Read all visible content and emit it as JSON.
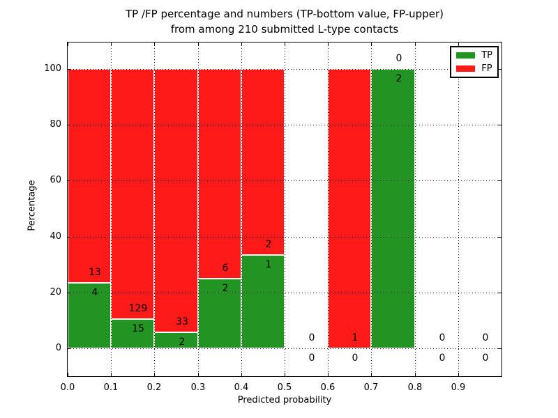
{
  "figure": {
    "title_line1": "TP /FP percentage and numbers (TP-bottom value, FP-upper)",
    "title_line2": "from among 210 submitted L-type contacts",
    "xlabel": "Predicted probability",
    "ylabel": "Percentage"
  },
  "legend": {
    "position": "upper-right",
    "items": [
      {
        "label": "TP",
        "color": "#219421"
      },
      {
        "label": "FP",
        "color": "#ff1a1a"
      }
    ]
  },
  "chart_data": {
    "type": "bar",
    "stacked": true,
    "title": "TP /FP percentage and numbers (TP-bottom value, FP-upper)\nfrom among 210 submitted L-type contacts",
    "xlabel": "Predicted probability",
    "ylabel": "Percentage",
    "xlim": [
      0.0,
      1.0
    ],
    "ylim": [
      -10,
      110
    ],
    "grid": true,
    "bin_width": 0.1,
    "x_tick_labels": [
      "0.0",
      "0.1",
      "0.2",
      "0.3",
      "0.4",
      "0.5",
      "0.6",
      "0.7",
      "0.8",
      "0.9"
    ],
    "y_ticks": [
      0,
      20,
      40,
      60,
      80,
      100
    ],
    "series": [
      {
        "name": "TP",
        "color": "#219421",
        "position": "bottom"
      },
      {
        "name": "FP",
        "color": "#ff1a1a",
        "position": "top"
      }
    ],
    "bins": [
      {
        "x0": 0.0,
        "tp_count": 4,
        "fp_count": 13,
        "tp_pct": 23.5,
        "fp_pct": 76.5
      },
      {
        "x0": 0.1,
        "tp_count": 15,
        "fp_count": 129,
        "tp_pct": 10.4,
        "fp_pct": 89.6
      },
      {
        "x0": 0.2,
        "tp_count": 2,
        "fp_count": 33,
        "tp_pct": 5.7,
        "fp_pct": 94.3
      },
      {
        "x0": 0.3,
        "tp_count": 2,
        "fp_count": 6,
        "tp_pct": 25.0,
        "fp_pct": 75.0
      },
      {
        "x0": 0.4,
        "tp_count": 1,
        "fp_count": 2,
        "tp_pct": 33.3,
        "fp_pct": 66.7
      },
      {
        "x0": 0.5,
        "tp_count": 0,
        "fp_count": 0,
        "tp_pct": 0,
        "fp_pct": 0
      },
      {
        "x0": 0.6,
        "tp_count": 0,
        "fp_count": 1,
        "tp_pct": 0,
        "fp_pct": 100
      },
      {
        "x0": 0.7,
        "tp_count": 2,
        "fp_count": 0,
        "tp_pct": 100,
        "fp_pct": 0
      },
      {
        "x0": 0.8,
        "tp_count": 0,
        "fp_count": 0,
        "tp_pct": 0,
        "fp_pct": 0
      },
      {
        "x0": 0.9,
        "tp_count": 0,
        "fp_count": 0,
        "tp_pct": 0,
        "fp_pct": 0
      }
    ],
    "total_contacts": 210
  }
}
